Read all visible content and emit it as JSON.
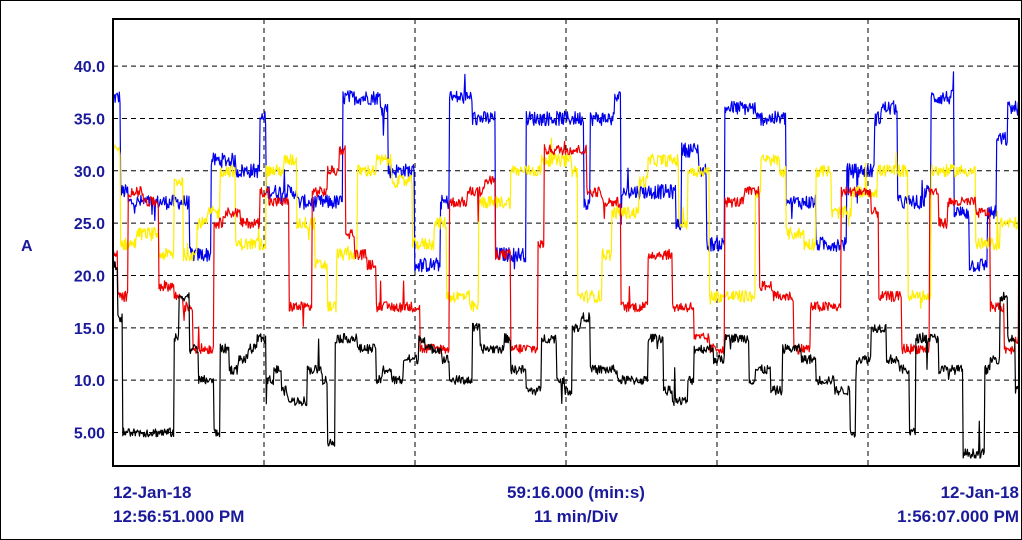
{
  "chart_data": {
    "type": "line",
    "ylabel": "A",
    "y_ticks": [
      "40.0",
      "35.0",
      "30.0",
      "25.0",
      "20.0",
      "15.0",
      "10.0",
      "5.00"
    ],
    "y_tick_values": [
      40,
      35,
      30,
      25,
      20,
      15,
      10,
      5
    ],
    "ylim": [
      1.8,
      44.5
    ],
    "x_range_minutes": [
      0,
      59.27
    ],
    "x_divisions": 6,
    "grid": "dashed",
    "legend": "none",
    "start_label": {
      "date": "12-Jan-18",
      "time": "12:56:51.000 PM"
    },
    "span_label": {
      "duration": "59:16.000 (min:s)",
      "division": "11 min/Div"
    },
    "end_label": {
      "date": "12-Jan-18",
      "time": "1:56:07.000 PM"
    },
    "series": [
      {
        "color": "#0000ee",
        "noise": 0.7,
        "x": [
          0,
          0.5,
          1,
          4.5,
          5,
          6,
          6.4,
          8,
          9.6,
          10,
          12,
          13.2,
          14.6,
          15,
          17.5,
          18,
          19.7,
          20,
          21.4,
          22,
          23.5,
          24,
          25,
          26,
          27,
          30.8,
          31.2,
          32.8,
          33.2,
          36.8,
          37.2,
          38.3,
          38.8,
          40,
          42,
          44,
          45.4,
          46,
          47.4,
          48,
          49.8,
          50.2,
          51.3,
          52.6,
          53.1,
          53.5,
          55,
          56,
          57.2,
          57.8,
          58.5,
          59.27
        ],
        "y": [
          37,
          28,
          27,
          27,
          22,
          22,
          31,
          30,
          35,
          28,
          27,
          27,
          27,
          37,
          36,
          30,
          21,
          21,
          27,
          37,
          35,
          35,
          22,
          22,
          35,
          27,
          35,
          37,
          28,
          25,
          32,
          30,
          23,
          36,
          35,
          27,
          27,
          23,
          23,
          30,
          35,
          36,
          27,
          27,
          28,
          37,
          26,
          21,
          26,
          33,
          36,
          36
        ],
        "samples": 1300
      },
      {
        "color": "#ffee00",
        "noise": 0.6,
        "x": [
          0,
          0.5,
          1.5,
          3,
          4,
          4.6,
          5.5,
          6.2,
          7,
          8,
          10,
          10.6,
          11.2,
          12,
          13.2,
          14,
          14.6,
          16,
          17.2,
          18.2,
          19.6,
          20.2,
          21,
          21.8,
          23.3,
          23.9,
          25,
          26,
          27,
          28,
          30,
          30.4,
          31.2,
          32,
          32.6,
          34.4,
          35,
          36,
          37,
          37.6,
          39,
          40,
          41,
          42,
          42.4,
          43.6,
          44,
          45.2,
          46,
          47,
          48.3,
          50,
          50.8,
          52,
          53.5,
          56.4,
          58,
          59.27
        ],
        "y": [
          32,
          23,
          24,
          22,
          29,
          22,
          25,
          26,
          30,
          23,
          30,
          30,
          31,
          25,
          21,
          17,
          22,
          30,
          31,
          29,
          23,
          23,
          25,
          18,
          17,
          27,
          27,
          30,
          30,
          31,
          30,
          18,
          18,
          22,
          26,
          29,
          31,
          31,
          25,
          30,
          18,
          18,
          18,
          28,
          31,
          30,
          24,
          23,
          30,
          26,
          28,
          30,
          30,
          18,
          30,
          23,
          25,
          27
        ],
        "samples": 1300
      },
      {
        "color": "#ee0000",
        "noise": 0.5,
        "x": [
          0,
          0.3,
          1,
          2,
          3,
          4,
          4.6,
          5.2,
          6.2,
          6.6,
          7.2,
          8.3,
          9.6,
          10.2,
          11.5,
          12,
          13,
          14,
          14.8,
          15.2,
          15.8,
          16.6,
          17.2,
          19.6,
          20.1,
          20.8,
          22,
          22.8,
          23.2,
          24.3,
          25,
          26,
          27,
          27.8,
          28.2,
          31,
          32,
          33.2,
          33.6,
          35,
          36.6,
          37.5,
          38,
          39,
          40,
          41.3,
          41.8,
          42.3,
          43.2,
          44.5,
          45.1,
          45.6,
          47,
          47.6,
          48.2,
          49.6,
          50.1,
          51,
          51.6,
          52.2,
          53.4,
          54,
          54.6,
          56.4,
          57.4,
          58.3,
          59,
          59.27
        ],
        "y": [
          22,
          18,
          28,
          27,
          19,
          18,
          17,
          13,
          13,
          25,
          26,
          25,
          28,
          27,
          17,
          17,
          28,
          30,
          32,
          24,
          22,
          21,
          17,
          17,
          13,
          13,
          27,
          27,
          28,
          29,
          22,
          13,
          13,
          23,
          32,
          28,
          27,
          17,
          17,
          22,
          17,
          17,
          14,
          13,
          27,
          28,
          28,
          19,
          18,
          13,
          13,
          17,
          17,
          28,
          28,
          26,
          18,
          18,
          13,
          13,
          28,
          25,
          27,
          26,
          17,
          13,
          14,
          28
        ],
        "samples": 1300
      },
      {
        "color": "#000000",
        "noise": 0.45,
        "x": [
          0,
          0.3,
          0.6,
          3.5,
          4,
          4.3,
          5,
          5.6,
          6,
          6.6,
          7,
          7.6,
          8.2,
          8.8,
          9.4,
          10,
          10.5,
          11,
          11.4,
          12.7,
          13.2,
          13.7,
          14,
          14.5,
          16,
          17.2,
          17.6,
          18.2,
          19,
          20,
          20.4,
          21.5,
          22,
          23.5,
          24,
          25.6,
          26,
          27,
          28,
          29,
          29.5,
          30,
          30.6,
          31.2,
          32.5,
          33,
          35,
          36,
          36.6,
          37.6,
          38,
          39.3,
          40,
          41.6,
          42,
          43,
          43.8,
          45,
          46,
          47.2,
          48.2,
          48.6,
          49.6,
          50.6,
          51.4,
          52.1,
          52.5,
          54,
          54.6,
          55.6,
          57,
          57.4,
          58,
          58.5,
          59,
          59.27
        ],
        "y": [
          21,
          16,
          5,
          5,
          14,
          18,
          13,
          10,
          10,
          5,
          13,
          11,
          12,
          13,
          14,
          10,
          11,
          9,
          8,
          11,
          11,
          10,
          4,
          14,
          13,
          10,
          11,
          10,
          12,
          14,
          13,
          12,
          10,
          15,
          13,
          14,
          11,
          9,
          14,
          10,
          9,
          15,
          16,
          11,
          11,
          10,
          14,
          9,
          8,
          10,
          13,
          12,
          14,
          10,
          11,
          9,
          13,
          12,
          10,
          9,
          5,
          12,
          15,
          12,
          11,
          5,
          14,
          11,
          11,
          3,
          11,
          12,
          18,
          14,
          9,
          10
        ],
        "samples": 1300
      }
    ]
  }
}
